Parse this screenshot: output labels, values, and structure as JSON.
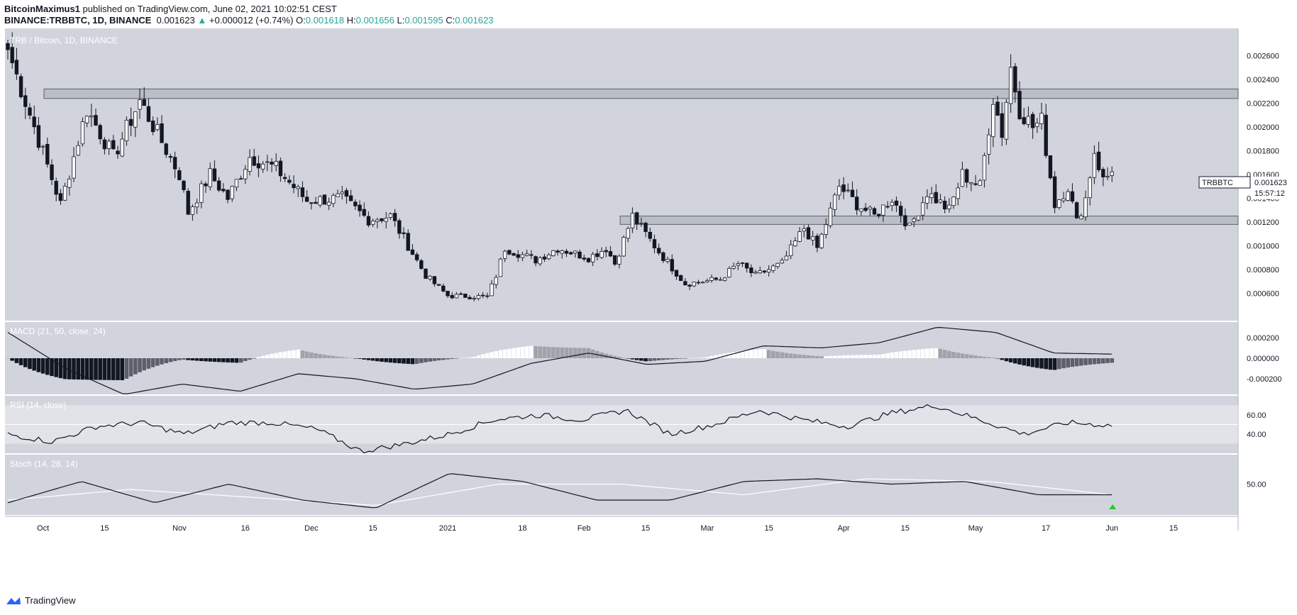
{
  "header": {
    "author": "BitcoinMaximus1",
    "published": "published on TradingView.com, June 02, 2021 10:02:51 CEST",
    "symbol_line": "BINANCE:TRBBTC, 1D, BINANCE",
    "last": "0.001623",
    "arrow": "▲",
    "change": "+0.000012 (+0.74%)",
    "o_label": "O:",
    "o": "0.001618",
    "h_label": "H:",
    "h": "0.001656",
    "l_label": "L:",
    "l": "0.001595",
    "c_label": "C:",
    "c": "0.001623"
  },
  "legend": {
    "main": "TRB / Bitcoin, 1D, BINANCE",
    "macd": "MACD (21, 50, close, 24)",
    "rsi": "RSI (14, close)",
    "stoch": "Stoch (14, 28, 14)",
    "currency": "BTC"
  },
  "price_tag": {
    "symbol": "TRBBTC",
    "value": "0.001623",
    "countdown": "15:57:12"
  },
  "footer": {
    "brand": "TradingView"
  },
  "colors": {
    "background": "#d1d4dc",
    "candle_up": "#ffffff",
    "candle_down": "#131722",
    "signal": "#ffffff",
    "arrow": "#22cc22"
  },
  "chart_data": {
    "type": "candlestick",
    "title": "TRB / Bitcoin, 1D, BINANCE",
    "price_axis": {
      "min": 0.0004,
      "max": 0.0028,
      "ticks": [
        "0.002600",
        "0.002400",
        "0.002200",
        "0.002000",
        "0.001800",
        "0.001600",
        "0.001400",
        "0.001200",
        "0.001000",
        "0.000800",
        "0.000600"
      ]
    },
    "x_ticks": [
      "Oct",
      "15",
      "Nov",
      "16",
      "Dec",
      "15",
      "2021",
      "18",
      "Feb",
      "15",
      "Mar",
      "15",
      "Apr",
      "15",
      "May",
      "17",
      "Jun",
      "15"
    ],
    "resistance_zone": [
      0.00224,
      0.00232
    ],
    "support_zone": [
      0.00118,
      0.00125
    ],
    "anchors": [
      {
        "label": "Sep 23 2020",
        "close": 0.00265
      },
      {
        "label": "Oct 05",
        "close": 0.00135
      },
      {
        "label": "Oct 11",
        "close": 0.00215
      },
      {
        "label": "Oct 17",
        "close": 0.00175
      },
      {
        "label": "Oct 23",
        "close": 0.00222
      },
      {
        "label": "Nov 01",
        "close": 0.0016
      },
      {
        "label": "Nov 03",
        "close": 0.00128
      },
      {
        "label": "Nov 08",
        "close": 0.0016
      },
      {
        "label": "Nov 12",
        "close": 0.0014
      },
      {
        "label": "Nov 17",
        "close": 0.00175
      },
      {
        "label": "Nov 23",
        "close": 0.00165
      },
      {
        "label": "Nov 30",
        "close": 0.00138
      },
      {
        "label": "Dec 08",
        "close": 0.0014
      },
      {
        "label": "Dec 14",
        "close": 0.00122
      },
      {
        "label": "Dec 19",
        "close": 0.00125
      },
      {
        "label": "Dec 27",
        "close": 0.00075
      },
      {
        "label": "Jan 01 2021",
        "close": 0.00058
      },
      {
        "label": "Jan 10",
        "close": 0.00057
      },
      {
        "label": "Jan 12",
        "close": 0.00075
      },
      {
        "label": "Jan 14",
        "close": 0.00098
      },
      {
        "label": "Jan 21",
        "close": 0.00088
      },
      {
        "label": "Jan 26",
        "close": 0.00098
      },
      {
        "label": "Feb 02",
        "close": 0.0009
      },
      {
        "label": "Feb 06",
        "close": 0.00098
      },
      {
        "label": "Feb 08",
        "close": 0.00085
      },
      {
        "label": "Feb 12",
        "close": 0.00125
      },
      {
        "label": "Feb 18",
        "close": 0.00095
      },
      {
        "label": "Feb 24",
        "close": 0.00068
      },
      {
        "label": "Mar 04",
        "close": 0.00072
      },
      {
        "label": "Mar 08",
        "close": 0.00085
      },
      {
        "label": "Mar 12",
        "close": 0.00075
      },
      {
        "label": "Mar 18",
        "close": 0.00085
      },
      {
        "label": "Mar 23",
        "close": 0.00115
      },
      {
        "label": "Mar 26",
        "close": 0.00098
      },
      {
        "label": "Mar 31",
        "close": 0.0015
      },
      {
        "label": "Apr 04",
        "close": 0.00135
      },
      {
        "label": "Apr 08",
        "close": 0.00125
      },
      {
        "label": "Apr 12",
        "close": 0.0014
      },
      {
        "label": "Apr 16",
        "close": 0.00115
      },
      {
        "label": "Apr 20",
        "close": 0.00145
      },
      {
        "label": "Apr 25",
        "close": 0.0013
      },
      {
        "label": "Apr 28",
        "close": 0.0016
      },
      {
        "label": "May 02",
        "close": 0.0015
      },
      {
        "label": "May 05",
        "close": 0.00225
      },
      {
        "label": "May 07",
        "close": 0.00195
      },
      {
        "label": "May 09",
        "close": 0.0025
      },
      {
        "label": "May 11",
        "close": 0.00215
      },
      {
        "label": "May 14",
        "close": 0.002
      },
      {
        "label": "May 16",
        "close": 0.00205
      },
      {
        "label": "May 19",
        "close": 0.00135
      },
      {
        "label": "May 22",
        "close": 0.0015
      },
      {
        "label": "May 24",
        "close": 0.0012
      },
      {
        "label": "May 26",
        "close": 0.0014
      },
      {
        "label": "May 28",
        "close": 0.0018
      },
      {
        "label": "May 30",
        "close": 0.00155
      },
      {
        "label": "Jun 02",
        "close": 0.001623
      }
    ],
    "macd": {
      "axis_ticks": [
        "0.000200",
        "0.000000",
        "-0.000200"
      ],
      "min": -0.00035,
      "max": 0.00035,
      "line": [
        {
          "label": "Sep 23",
          "value": 0.00025
        },
        {
          "label": "Oct 01",
          "value": -0.0001
        },
        {
          "label": "Oct 08",
          "value": -0.00035
        },
        {
          "label": "Nov 01",
          "value": -0.00025
        },
        {
          "label": "Nov 10",
          "value": -0.00032
        },
        {
          "label": "Dec 01",
          "value": -0.00015
        },
        {
          "label": "Dec 15",
          "value": -0.0002
        },
        {
          "label": "Jan 01",
          "value": -0.0003
        },
        {
          "label": "Jan 15",
          "value": -0.00025
        },
        {
          "label": "Feb 01",
          "value": -5e-05
        },
        {
          "label": "Feb 12",
          "value": 5e-05
        },
        {
          "label": "Mar 01",
          "value": -6e-05
        },
        {
          "label": "Mar 20",
          "value": -3e-05
        },
        {
          "label": "Apr 01",
          "value": 0.00012
        },
        {
          "label": "Apr 20",
          "value": 0.0001
        },
        {
          "label": "May 05",
          "value": 0.00015
        },
        {
          "label": "May 09",
          "value": 0.0003
        },
        {
          "label": "May 16",
          "value": 0.00025
        },
        {
          "label": "May 26",
          "value": 5e-05
        },
        {
          "label": "Jun 02",
          "value": 4e-05
        }
      ]
    },
    "rsi": {
      "axis_ticks": [
        "60.00",
        "40.00"
      ],
      "min": 20,
      "max": 80,
      "band": [
        30,
        70
      ],
      "mid": 50,
      "line": [
        {
          "label": "Sep 23",
          "value": 40
        },
        {
          "label": "Oct 05",
          "value": 32
        },
        {
          "label": "Oct 11",
          "value": 48
        },
        {
          "label": "Oct 23",
          "value": 52
        },
        {
          "label": "Nov 04",
          "value": 40
        },
        {
          "label": "Nov 17",
          "value": 52
        },
        {
          "label": "Nov 23",
          "value": 52
        },
        {
          "label": "Dec 14",
          "value": 45
        },
        {
          "label": "Dec 27",
          "value": 22
        },
        {
          "label": "Jan 05",
          "value": 30
        },
        {
          "label": "Jan 13",
          "value": 40
        },
        {
          "label": "Jan 14",
          "value": 55
        },
        {
          "label": "Jan 18",
          "value": 60
        },
        {
          "label": "Feb 06",
          "value": 55
        },
        {
          "label": "Feb 12",
          "value": 65
        },
        {
          "label": "Feb 24",
          "value": 40
        },
        {
          "label": "Mar 12",
          "value": 50
        },
        {
          "label": "Mar 31",
          "value": 65
        },
        {
          "label": "Apr 12",
          "value": 55
        },
        {
          "label": "Apr 16",
          "value": 48
        },
        {
          "label": "Apr 28",
          "value": 62
        },
        {
          "label": "May 09",
          "value": 70
        },
        {
          "label": "May 16",
          "value": 55
        },
        {
          "label": "May 24",
          "value": 40
        },
        {
          "label": "May 28",
          "value": 52
        },
        {
          "label": "Jun 02",
          "value": 49
        }
      ]
    },
    "stoch": {
      "axis_ticks": [
        "50.00"
      ],
      "min": 0,
      "max": 100,
      "k": [
        {
          "label": "Sep 23",
          "value": 15
        },
        {
          "label": "Oct 23",
          "value": 55
        },
        {
          "label": "Nov 10",
          "value": 15
        },
        {
          "label": "Nov 23",
          "value": 50
        },
        {
          "label": "Dec 15",
          "value": 20
        },
        {
          "label": "Jan 01",
          "value": 5
        },
        {
          "label": "Jan 26",
          "value": 70
        },
        {
          "label": "Feb 12",
          "value": 55
        },
        {
          "label": "Feb 24",
          "value": 20
        },
        {
          "label": "Mar 15",
          "value": 20
        },
        {
          "label": "Apr 01",
          "value": 55
        },
        {
          "label": "Apr 12",
          "value": 60
        },
        {
          "label": "Apr 25",
          "value": 50
        },
        {
          "label": "May 10",
          "value": 55
        },
        {
          "label": "May 22",
          "value": 30
        },
        {
          "label": "Jun 02",
          "value": 30
        }
      ],
      "d": [
        {
          "label": "Sep 23",
          "value": 20
        },
        {
          "label": "Nov 01",
          "value": 40
        },
        {
          "label": "Dec 10",
          "value": 25
        },
        {
          "label": "Jan 01",
          "value": 10
        },
        {
          "label": "Feb 06",
          "value": 50
        },
        {
          "label": "Feb 20",
          "value": 50
        },
        {
          "label": "Mar 20",
          "value": 30
        },
        {
          "label": "Apr 15",
          "value": 60
        },
        {
          "label": "May 10",
          "value": 55
        },
        {
          "label": "Jun 02",
          "value": 30
        }
      ]
    }
  }
}
